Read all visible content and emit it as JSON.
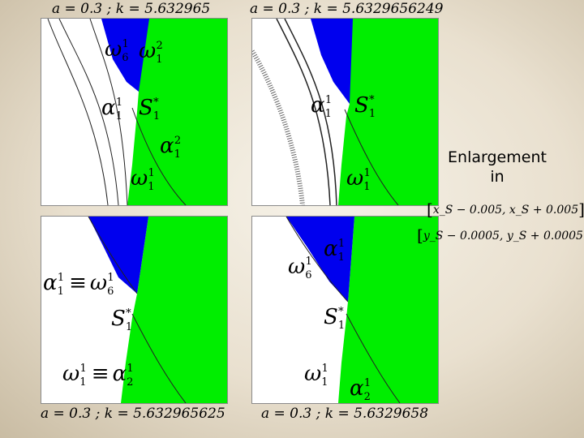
{
  "captions": {
    "top_left": "a = 0.3 ;  k = 5.632965",
    "top_right": "a = 0.3 ;  k = 5.6329656249",
    "bottom_left": "a = 0.3 ;  k = 5.632965625",
    "bottom_right": "a = 0.3 ;  k = 5.6329658"
  },
  "side_note": {
    "line1": "Enlargement",
    "line2": "in",
    "interval_x": "x_S − 0.005, x_S + 0.005",
    "times": "×",
    "interval_y": "y_S − 0.0005, y_S + 0.0005"
  },
  "labels": {
    "omega": "ω",
    "alpha": "α",
    "S": "S",
    "star": "*",
    "equiv": "≡",
    "one": "1",
    "two": "2",
    "six": "6"
  },
  "colors": {
    "green": "#00ee00",
    "blue": "#0000ee",
    "white": "#ffffff",
    "line": "#222222"
  }
}
